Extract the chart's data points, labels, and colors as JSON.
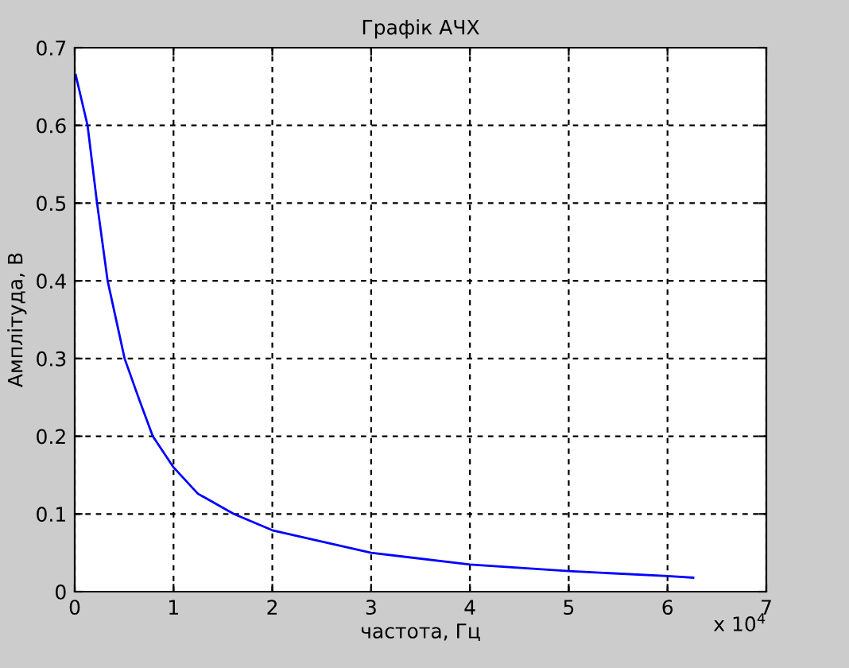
{
  "chart_data": {
    "type": "line",
    "title": "Графік АЧХ",
    "xlabel": "частота, Гц",
    "ylabel": "Амплітуда, В",
    "annotations": [
      "x 10$^{4}$"
    ],
    "series": [
      {
        "color": "#0000ff",
        "x": [
          0.01,
          0.13,
          0.226,
          0.333,
          0.505,
          0.656,
          0.79,
          1.0,
          1.247,
          1.61,
          2.0,
          3.0,
          4.0,
          5.0,
          6.0,
          6.26
        ],
        "values": [
          0.665,
          0.6,
          0.5,
          0.4,
          0.3,
          0.246,
          0.2,
          0.16,
          0.126,
          0.1,
          0.079,
          0.05,
          0.035,
          0.0265,
          0.02,
          0.018
        ]
      }
    ],
    "xlim": [
      0,
      7
    ],
    "xticks": [
      0,
      1,
      2,
      3,
      4,
      5,
      6,
      7
    ],
    "ylim": [
      0,
      0.7
    ],
    "yticks": [
      0,
      0.1,
      0.2,
      0.3,
      0.4,
      0.5,
      0.6,
      0.7
    ],
    "grid": true,
    "line_style": "solid"
  }
}
